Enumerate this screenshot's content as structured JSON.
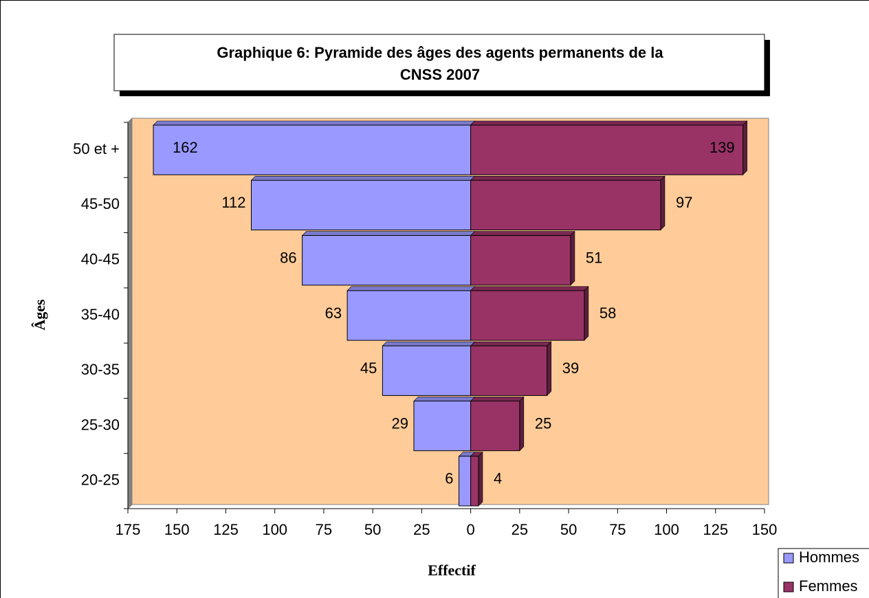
{
  "chart_data": {
    "type": "bar",
    "orientation": "horizontal",
    "title": "Graphique 6: Pyramide des âges des agents permanents de la CNSS 2007",
    "title_lines": [
      "Graphique 6: Pyramide des âges des agents permanents de la",
      "CNSS 2007"
    ],
    "x_label": "Effectif",
    "y_label": "Âges",
    "categories": [
      "50 et +",
      "45-50",
      "40-45",
      "35-40",
      "30-35",
      "25-30",
      "20-25"
    ],
    "series": [
      {
        "name": "Hommes",
        "color": "#9999ff",
        "label_color": "#ff0000",
        "values": [
          -162,
          -112,
          -86,
          -63,
          -45,
          -29,
          -6
        ],
        "value_labels": [
          "162",
          "112",
          "86",
          "63",
          "45",
          "29",
          "6"
        ]
      },
      {
        "name": "Femmes",
        "color": "#993366",
        "label_color": "#000000",
        "values": [
          139,
          97,
          51,
          58,
          39,
          25,
          4
        ]
      }
    ],
    "xlim": [
      -175,
      150
    ],
    "xticks": [
      {
        "value": -175,
        "label": "175"
      },
      {
        "value": -150,
        "label": "150"
      },
      {
        "value": -125,
        "label": "125"
      },
      {
        "value": -100,
        "label": "100"
      },
      {
        "value": -75,
        "label": "75"
      },
      {
        "value": -50,
        "label": "50"
      },
      {
        "value": -25,
        "label": "25"
      },
      0,
      25,
      50,
      75,
      100,
      125,
      150
    ],
    "negative_tick_color": "#ff0000",
    "plot_background": "#ffcc99",
    "grid": false,
    "legend": "bottom-right"
  }
}
